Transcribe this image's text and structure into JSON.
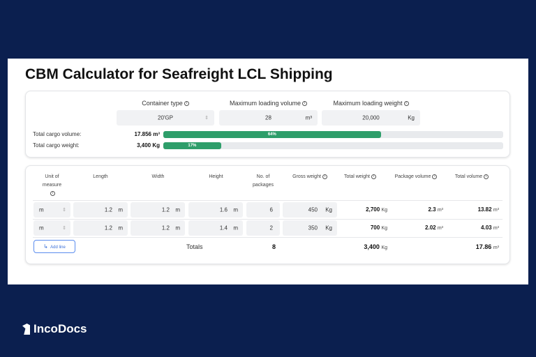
{
  "title": "CBM Calculator for Seafreight LCL Shipping",
  "container": {
    "type_label": "Container type",
    "type_value": "20'GP",
    "volume_label": "Maximum loading volume",
    "volume_value": "28",
    "volume_unit": "m³",
    "weight_label": "Maximum loading weight",
    "weight_value": "20,000",
    "weight_unit": "Kg"
  },
  "summary": {
    "volume_label": "Total cargo volume:",
    "volume_value": "17.856 m³",
    "volume_percent": 64,
    "volume_percent_text": "64%",
    "weight_label": "Total cargo weight:",
    "weight_value": "3,400 Kg",
    "weight_percent": 17,
    "weight_percent_text": "17%"
  },
  "table": {
    "headers": [
      "Unit of measure",
      "Length",
      "Width",
      "Height",
      "No. of packages",
      "Gross weight",
      "Total weight",
      "Package volume",
      "Total volume"
    ],
    "rows": [
      {
        "unit": "m",
        "length": "1.2",
        "width": "1.2",
        "height": "1.6",
        "packages": "6",
        "gross": "450",
        "total_weight": "2,700",
        "package_volume": "2.3",
        "total_volume": "13.82"
      },
      {
        "unit": "m",
        "length": "1.2",
        "width": "1.2",
        "height": "1.4",
        "packages": "2",
        "gross": "350",
        "total_weight": "700",
        "package_volume": "2.02",
        "total_volume": "4.03"
      }
    ],
    "len_unit": "m",
    "kg_unit": "Kg",
    "m3_unit": "m³",
    "add_line": "Add line",
    "totals_label": "Totals",
    "totals_packages": "8",
    "totals_weight": "3,400",
    "totals_volume": "17.86"
  },
  "brand": "IncoDocs",
  "colors": {
    "background": "#0b1f4f",
    "progress": "#2e9e6a"
  }
}
